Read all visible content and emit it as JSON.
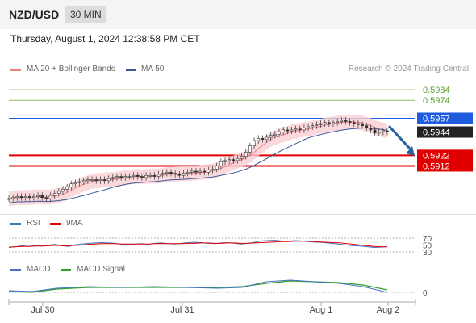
{
  "header": {
    "pair": "NZD/USD",
    "timeframe": "30 MIN"
  },
  "timestamp": "Thursday, August 1, 2024 12:38:58 PM CET",
  "copyright": "Research © 2024 Trading Central",
  "legend_main": [
    {
      "label": "MA 20 + Bollinger Bands",
      "color": "#f08080"
    },
    {
      "label": "MA 50",
      "color": "#3b5998"
    }
  ],
  "legend_rsi": [
    {
      "label": "RSI",
      "color": "#4472c4"
    },
    {
      "label": "9MA",
      "color": "#e00000"
    }
  ],
  "legend_macd": [
    {
      "label": "MACD",
      "color": "#4472c4"
    },
    {
      "label": "MACD Signal",
      "color": "#33a02c"
    }
  ],
  "levels": [
    {
      "value": 0.5984,
      "label": "0.5984",
      "kind": "resistance-far",
      "color": "#8fbf5f"
    },
    {
      "value": 0.5974,
      "label": "0.5974",
      "kind": "resistance-far",
      "color": "#8fbf5f"
    },
    {
      "value": 0.5957,
      "label": "0.5957",
      "kind": "pivot",
      "color": "#1f5cde"
    },
    {
      "value": 0.5922,
      "label": "0.5922",
      "kind": "support",
      "color": "#e00000"
    },
    {
      "value": 0.5912,
      "label": "0.5912",
      "kind": "support",
      "color": "#e00000"
    }
  ],
  "last_price": {
    "value": 0.5944,
    "label": "0.5944"
  },
  "rsi_levels": [
    "70",
    "50",
    "30"
  ],
  "macd_zero_label": "0",
  "x_labels": [
    "Jul 30",
    "Jul 31",
    "Aug 1",
    "Aug 2"
  ],
  "chart_data": {
    "type": "candlestick",
    "price_range": [
      0.5878,
      0.5994
    ],
    "close_series": [
      0.5881,
      0.5882,
      0.5883,
      0.5882,
      0.5883,
      0.5882,
      0.5883,
      0.5884,
      0.5882,
      0.5881,
      0.5884,
      0.5886,
      0.5888,
      0.589,
      0.5892,
      0.5895,
      0.5896,
      0.5897,
      0.5898,
      0.5899,
      0.5899,
      0.5898,
      0.5899,
      0.5898,
      0.59,
      0.5901,
      0.5902,
      0.5901,
      0.5902,
      0.5902,
      0.5903,
      0.5902,
      0.5901,
      0.5903,
      0.5903,
      0.5902,
      0.5904,
      0.5905,
      0.5906,
      0.5905,
      0.5904,
      0.5903,
      0.5905,
      0.5906,
      0.5907,
      0.5906,
      0.5907,
      0.5906,
      0.5908,
      0.5909,
      0.5912,
      0.5916,
      0.5917,
      0.5918,
      0.5917,
      0.5919,
      0.5921,
      0.5925,
      0.5931,
      0.5936,
      0.5938,
      0.5937,
      0.5939,
      0.5941,
      0.5942,
      0.5944,
      0.5946,
      0.5945,
      0.5946,
      0.5947,
      0.5946,
      0.5948,
      0.5949,
      0.595,
      0.5951,
      0.5952,
      0.5953,
      0.5952,
      0.5953,
      0.5954,
      0.5955,
      0.5954,
      0.5953,
      0.5952,
      0.5951,
      0.595,
      0.5948,
      0.5946,
      0.5943,
      0.5944,
      0.5945,
      0.5944
    ],
    "rsi": [
      43,
      45,
      48,
      46,
      49,
      47,
      50,
      52,
      48,
      46,
      51,
      53,
      55,
      56,
      57,
      56,
      55,
      52,
      51,
      53,
      54,
      52,
      55,
      56,
      54,
      53,
      55,
      57,
      58,
      57,
      55,
      54,
      56,
      57,
      55,
      53,
      55,
      58,
      62,
      63,
      64,
      62,
      61,
      63,
      62,
      60,
      59,
      58,
      56,
      54,
      52,
      50,
      48,
      47,
      45,
      43,
      44,
      45
    ],
    "rsi_ma": [
      44,
      45,
      46,
      46,
      47,
      47,
      48,
      49,
      48,
      48,
      49,
      50,
      52,
      53,
      54,
      54,
      54,
      53,
      53,
      53,
      53,
      53,
      54,
      54,
      54,
      54,
      54,
      55,
      55,
      56,
      56,
      55,
      55,
      56,
      56,
      55,
      55,
      56,
      57,
      58,
      59,
      60,
      60,
      61,
      61,
      61,
      60,
      59,
      58,
      57,
      56,
      54,
      52,
      50,
      48,
      46,
      45,
      45
    ]
  }
}
